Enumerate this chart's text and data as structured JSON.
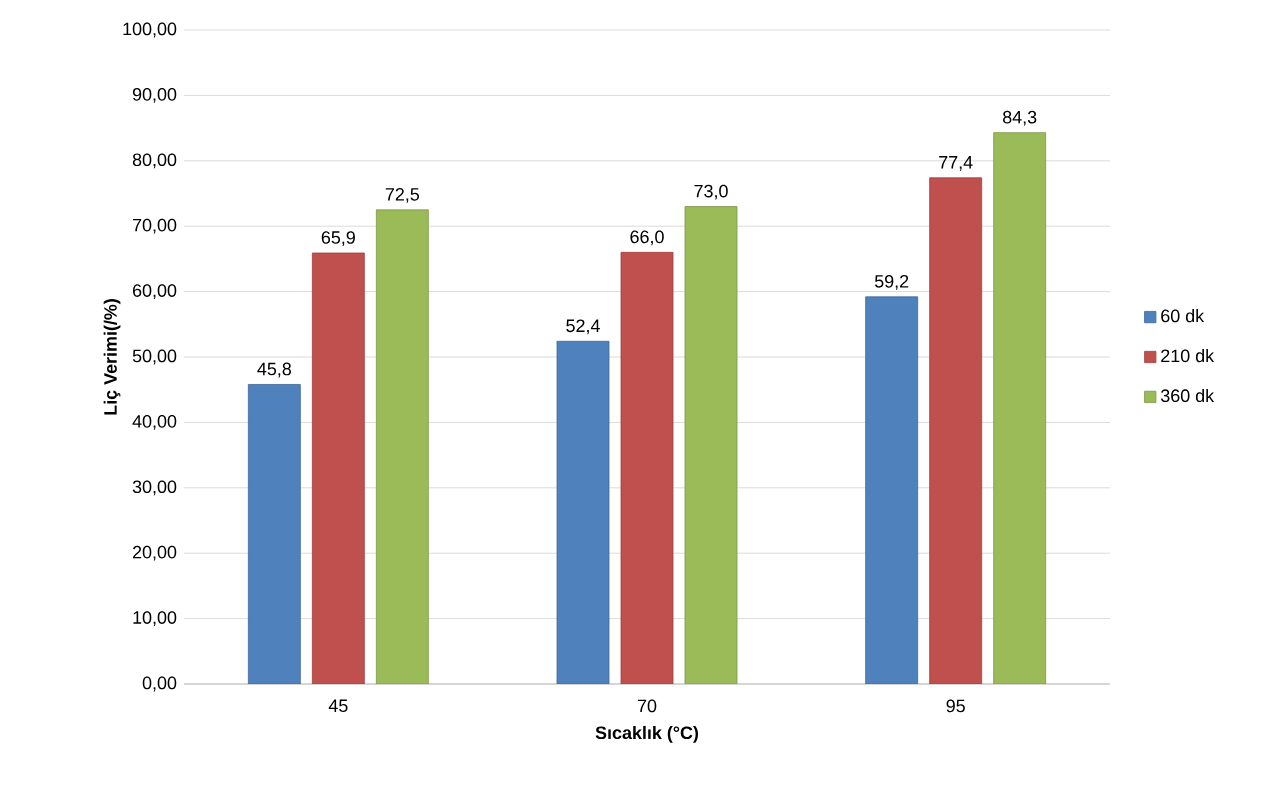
{
  "chart_data": {
    "type": "bar",
    "xlabel": "Sıcaklık (°C)",
    "ylabel": "Liç Verimi(/%)",
    "categories": [
      "45",
      "70",
      "95"
    ],
    "series": [
      {
        "name": "60 dk",
        "color": "#4f81bd",
        "values": [
          45.8,
          52.4,
          59.2
        ],
        "value_labels": [
          "45,8",
          "52,4",
          "59,2"
        ]
      },
      {
        "name": "210 dk",
        "color": "#c0504d",
        "values": [
          65.9,
          66.0,
          77.4
        ],
        "value_labels": [
          "65,9",
          "66,0",
          "77,4"
        ]
      },
      {
        "name": "360 dk",
        "color": "#9bbb59",
        "values": [
          72.5,
          73.0,
          84.3
        ],
        "value_labels": [
          "72,5",
          "73,0",
          "84,3"
        ]
      }
    ],
    "ylim": [
      0,
      100
    ],
    "yticks": [
      {
        "value": 0,
        "label": "0,00"
      },
      {
        "value": 10,
        "label": "10,00"
      },
      {
        "value": 20,
        "label": "20,00"
      },
      {
        "value": 30,
        "label": "30,00"
      },
      {
        "value": 40,
        "label": "40,00"
      },
      {
        "value": 50,
        "label": "50,00"
      },
      {
        "value": 60,
        "label": "60,00"
      },
      {
        "value": 70,
        "label": "70,00"
      },
      {
        "value": 80,
        "label": "80,00"
      },
      {
        "value": 90,
        "label": "90,00"
      },
      {
        "value": 100,
        "label": "100,00"
      }
    ],
    "grid": "y",
    "legend": "right"
  }
}
